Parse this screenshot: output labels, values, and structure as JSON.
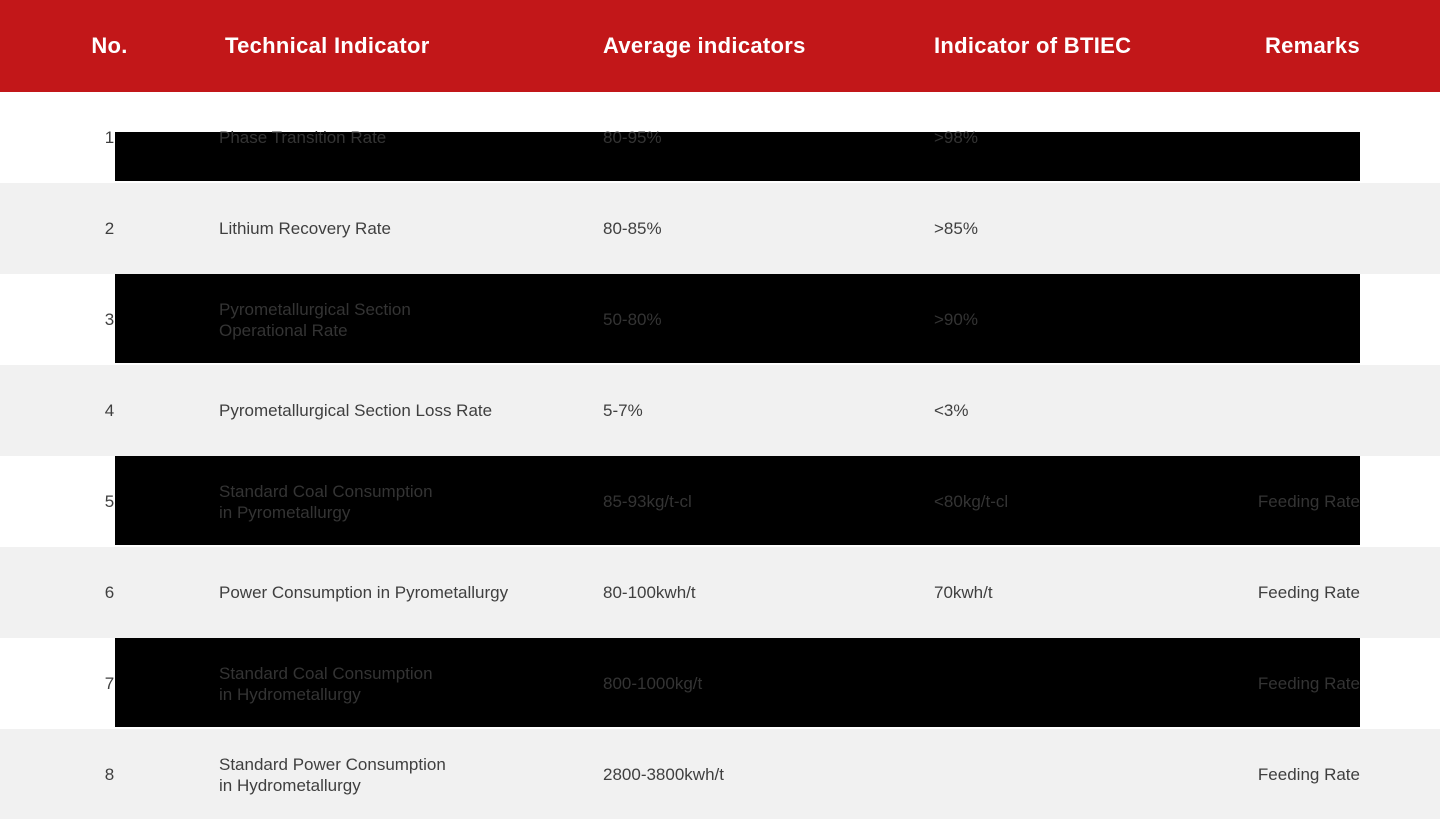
{
  "colors": {
    "header_background": "#C21719",
    "header_text": "#FFFFFF",
    "row_light_background": "#F1F1F1",
    "row_white_background": "#FFFFFF",
    "row_overlay": "#000000",
    "body_text": "#3F3F3F"
  },
  "table": {
    "columns": {
      "no": "No.",
      "indicator": "Technical Indicator",
      "average": "Average indicators",
      "btiec": "Indicator of BTIEC",
      "remarks": "Remarks"
    },
    "rows": [
      {
        "no": "1",
        "indicator": "Phase Transition Rate",
        "average": "80-95%",
        "btiec": ">98%",
        "remarks": ""
      },
      {
        "no": "2",
        "indicator": "Lithium Recovery Rate",
        "average": "80-85%",
        "btiec": ">85%",
        "remarks": ""
      },
      {
        "no": "3",
        "indicator": "Pyrometallurgical Section\nOperational Rate",
        "average": "50-80%",
        "btiec": ">90%",
        "remarks": ""
      },
      {
        "no": "4",
        "indicator": "Pyrometallurgical Section Loss Rate",
        "average": "5-7%",
        "btiec": "<3%",
        "remarks": ""
      },
      {
        "no": "5",
        "indicator": "Standard Coal Consumption\nin Pyrometallurgy",
        "average": "85-93kg/t-cl",
        "btiec": "<80kg/t-cl",
        "remarks": "Feeding Rate"
      },
      {
        "no": "6",
        "indicator": "Power Consumption in Pyrometallurgy",
        "average": "80-100kwh/t",
        "btiec": "70kwh/t",
        "remarks": "Feeding Rate"
      },
      {
        "no": "7",
        "indicator": "Standard Coal Consumption\nin Hydrometallurgy",
        "average": "800-1000kg/t",
        "btiec": "",
        "remarks": "Feeding Rate"
      },
      {
        "no": "8",
        "indicator": "Standard Power Consumption\nin Hydrometallurgy",
        "average": "2800-3800kwh/t",
        "btiec": "",
        "remarks": "Feeding Rate"
      }
    ]
  }
}
